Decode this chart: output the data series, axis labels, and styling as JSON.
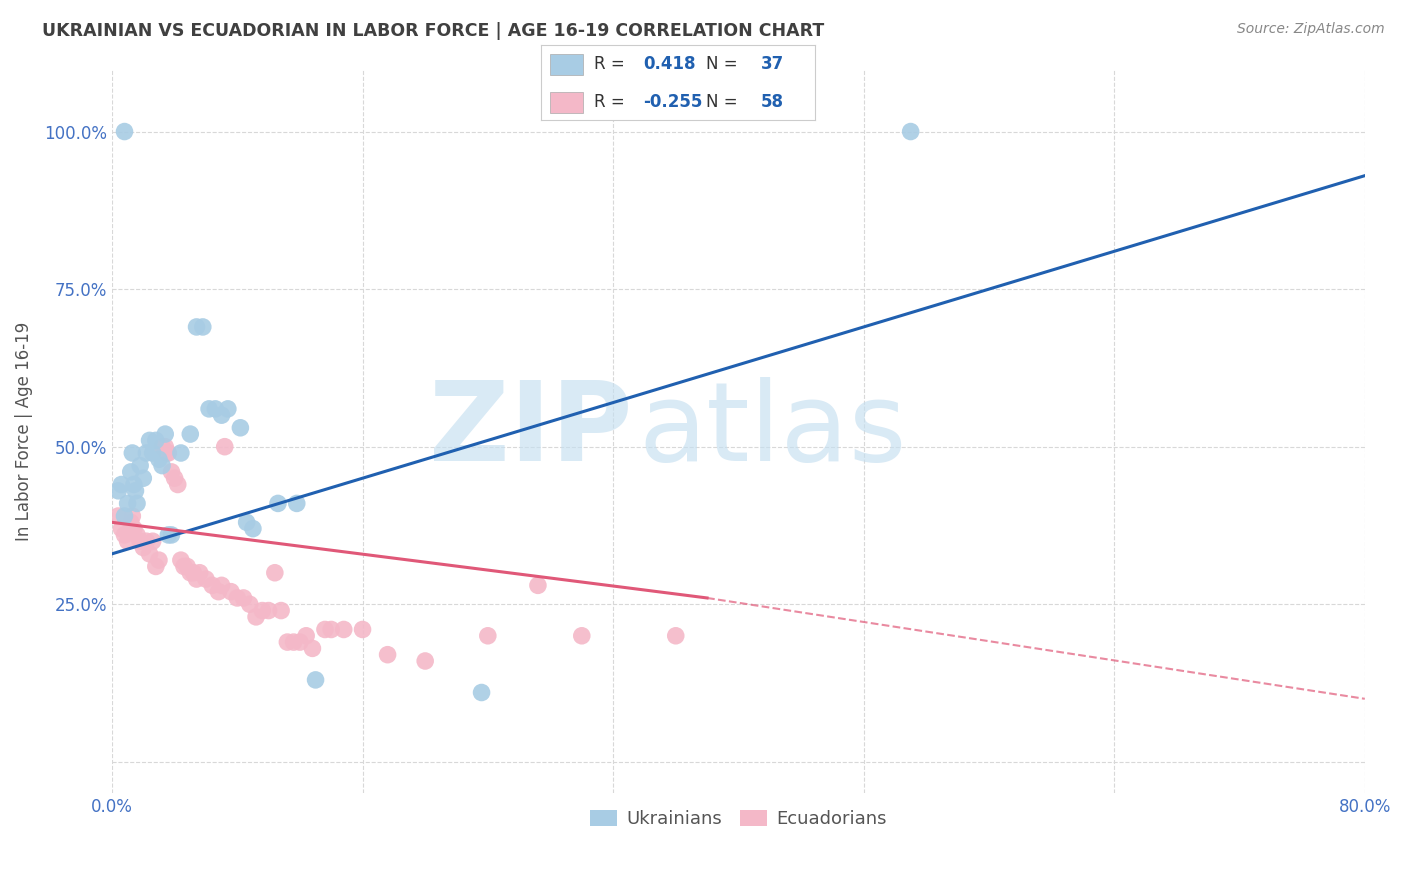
{
  "title": "UKRAINIAN VS ECUADORIAN IN LABOR FORCE | AGE 16-19 CORRELATION CHART",
  "source": "Source: ZipAtlas.com",
  "ylabel": "In Labor Force | Age 16-19",
  "watermark_zip": "ZIP",
  "watermark_atlas": "atlas",
  "legend_blue_r": "0.418",
  "legend_blue_n": "37",
  "legend_pink_r": "-0.255",
  "legend_pink_n": "58",
  "blue_color": "#a8cce4",
  "pink_color": "#f4b8c8",
  "line_blue": "#2060b0",
  "line_pink": "#e05878",
  "title_color": "#404040",
  "axis_label_color": "#4472c4",
  "background_color": "#ffffff",
  "grid_color": "#d8d8d8",
  "blue_scatter": [
    [
      0.4,
      43
    ],
    [
      0.6,
      44
    ],
    [
      0.8,
      39
    ],
    [
      1.0,
      41
    ],
    [
      1.2,
      46
    ],
    [
      1.3,
      49
    ],
    [
      1.4,
      44
    ],
    [
      1.5,
      43
    ],
    [
      1.6,
      41
    ],
    [
      1.8,
      47
    ],
    [
      2.0,
      45
    ],
    [
      2.2,
      49
    ],
    [
      2.4,
      51
    ],
    [
      2.6,
      49
    ],
    [
      2.8,
      51
    ],
    [
      3.0,
      48
    ],
    [
      3.2,
      47
    ],
    [
      3.4,
      52
    ],
    [
      3.6,
      36
    ],
    [
      3.8,
      36
    ],
    [
      4.4,
      49
    ],
    [
      5.0,
      52
    ],
    [
      5.4,
      69
    ],
    [
      5.8,
      69
    ],
    [
      6.2,
      56
    ],
    [
      6.6,
      56
    ],
    [
      7.0,
      55
    ],
    [
      7.4,
      56
    ],
    [
      8.2,
      53
    ],
    [
      8.6,
      38
    ],
    [
      9.0,
      37
    ],
    [
      10.6,
      41
    ],
    [
      11.8,
      41
    ],
    [
      13.0,
      13
    ],
    [
      23.6,
      11
    ],
    [
      51.0,
      100
    ],
    [
      0.8,
      100
    ]
  ],
  "pink_scatter": [
    [
      0.4,
      39
    ],
    [
      0.6,
      37
    ],
    [
      0.8,
      36
    ],
    [
      1.0,
      35
    ],
    [
      1.2,
      38
    ],
    [
      1.3,
      39
    ],
    [
      1.4,
      37
    ],
    [
      1.6,
      36
    ],
    [
      1.8,
      35
    ],
    [
      2.0,
      34
    ],
    [
      2.2,
      35
    ],
    [
      2.4,
      33
    ],
    [
      2.6,
      35
    ],
    [
      2.8,
      31
    ],
    [
      3.0,
      32
    ],
    [
      3.2,
      50
    ],
    [
      3.4,
      50
    ],
    [
      3.5,
      49
    ],
    [
      3.6,
      49
    ],
    [
      3.8,
      46
    ],
    [
      4.0,
      45
    ],
    [
      4.2,
      44
    ],
    [
      4.4,
      32
    ],
    [
      4.6,
      31
    ],
    [
      4.8,
      31
    ],
    [
      5.0,
      30
    ],
    [
      5.2,
      30
    ],
    [
      5.4,
      29
    ],
    [
      5.6,
      30
    ],
    [
      6.0,
      29
    ],
    [
      6.4,
      28
    ],
    [
      6.8,
      27
    ],
    [
      7.0,
      28
    ],
    [
      7.2,
      50
    ],
    [
      7.6,
      27
    ],
    [
      8.0,
      26
    ],
    [
      8.4,
      26
    ],
    [
      8.8,
      25
    ],
    [
      9.2,
      23
    ],
    [
      9.6,
      24
    ],
    [
      10.0,
      24
    ],
    [
      10.4,
      30
    ],
    [
      10.8,
      24
    ],
    [
      11.2,
      19
    ],
    [
      11.6,
      19
    ],
    [
      12.0,
      19
    ],
    [
      12.4,
      20
    ],
    [
      12.8,
      18
    ],
    [
      13.6,
      21
    ],
    [
      14.0,
      21
    ],
    [
      14.8,
      21
    ],
    [
      16.0,
      21
    ],
    [
      17.6,
      17
    ],
    [
      20.0,
      16
    ],
    [
      24.0,
      20
    ],
    [
      27.2,
      28
    ],
    [
      30.0,
      20
    ],
    [
      36.0,
      20
    ]
  ],
  "xlim": [
    0.0,
    80.0
  ],
  "ylim": [
    -5.0,
    110.0
  ],
  "xticks": [
    0.0,
    16.0,
    32.0,
    48.0,
    64.0,
    80.0
  ],
  "xtick_labels": [
    "0.0%",
    "",
    "",
    "",
    "",
    "80.0%"
  ],
  "yticks": [
    0.0,
    25.0,
    50.0,
    75.0,
    100.0
  ],
  "ytick_labels": [
    "",
    "25.0%",
    "50.0%",
    "75.0%",
    "100.0%"
  ],
  "blue_line_x0": 0.0,
  "blue_line_y0": 33.0,
  "blue_line_x1": 80.0,
  "blue_line_y1": 93.0,
  "pink_line_x0": 0.0,
  "pink_line_y0": 38.0,
  "pink_line_x1_solid": 38.0,
  "pink_line_y1_solid": 26.0,
  "pink_line_x1_dashed": 80.0,
  "pink_line_y1_dashed": 10.0
}
